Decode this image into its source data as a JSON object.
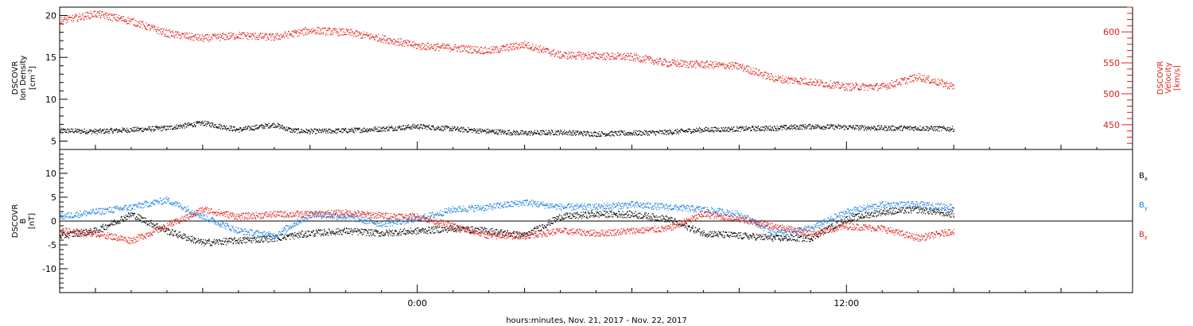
{
  "chart_data": [
    {
      "panel": "plasma",
      "type": "scatter",
      "time_axis": {
        "start": "2017-11-21 -10:00",
        "end": "2017-11-22 20:00",
        "tick_labels": [
          "0:00",
          "12:00"
        ],
        "tick_hours": [
          0,
          12
        ],
        "label": "hours:minutes, Nov. 21, 2017 - Nov. 22, 2017"
      },
      "left_axis": {
        "label_lines": [
          "DSCOVR",
          "Ion Density"
        ],
        "unit_base": "[cm",
        "unit_sup": "-3",
        "unit_close": "]",
        "ylim": [
          4,
          21
        ],
        "ticks": [
          5,
          10,
          15,
          20
        ],
        "color": "#000000"
      },
      "right_axis": {
        "label_lines": [
          "DSCOVR",
          "Velocity",
          "[km/s]"
        ],
        "ylim": [
          410,
          640
        ],
        "ticks": [
          450,
          500,
          550,
          600
        ],
        "color": "#e0201a"
      },
      "series": [
        {
          "axis": "left",
          "color": "#000000",
          "x_hours": [
            -10,
            -9,
            -8,
            -7,
            -6,
            -5,
            -4,
            -3.5,
            -3,
            -2,
            -1,
            0,
            1,
            2,
            3,
            4,
            5,
            6,
            7,
            8,
            9,
            10,
            11,
            12,
            13,
            14,
            15
          ],
          "values": [
            6.3,
            6.2,
            6.4,
            6.6,
            7.2,
            6.4,
            7.0,
            6.3,
            6.2,
            6.3,
            6.5,
            6.8,
            6.5,
            6.2,
            6.0,
            6.1,
            5.9,
            6.0,
            6.1,
            6.4,
            6.5,
            6.6,
            6.8,
            6.7,
            6.6,
            6.6,
            6.5
          ]
        },
        {
          "axis": "right",
          "color": "#e0201a",
          "x_hours": [
            -10,
            -9,
            -8,
            -7,
            -6,
            -5,
            -4,
            -3,
            -2,
            -1,
            0,
            1,
            2,
            3,
            4,
            5,
            6,
            7,
            8,
            9,
            10,
            11,
            12,
            13,
            14,
            15
          ],
          "values": [
            618,
            630,
            618,
            598,
            590,
            595,
            592,
            603,
            600,
            590,
            578,
            575,
            570,
            580,
            563,
            562,
            560,
            550,
            548,
            545,
            525,
            520,
            512,
            512,
            528,
            512
          ]
        }
      ]
    },
    {
      "panel": "magnetic",
      "type": "scatter",
      "left_axis": {
        "label_lines": [
          "DSCOVR",
          "B",
          "[nT]"
        ],
        "ylim": [
          -15,
          15
        ],
        "ticks": [
          -10,
          -5,
          0,
          5,
          10
        ],
        "color": "#000000"
      },
      "zero_line": true,
      "legend_placement": "right",
      "series": [
        {
          "name_main": "B",
          "name_sub": "x",
          "color": "#000000",
          "x_hours": [
            -10,
            -9,
            -8,
            -7,
            -6,
            -5,
            -4,
            -3,
            -2,
            -1,
            0,
            1,
            2,
            3,
            4,
            5,
            6,
            7,
            8,
            9,
            10,
            11,
            12,
            13,
            14,
            15
          ],
          "values": [
            -3,
            -2,
            1.5,
            -2,
            -4.5,
            -4,
            -3.5,
            -2.5,
            -2,
            -2.5,
            -2,
            -1.5,
            -2,
            -3,
            1,
            1.5,
            1.5,
            0.5,
            -2.5,
            -3,
            -3.5,
            -3.5,
            0.5,
            2,
            2.5,
            1.5
          ]
        },
        {
          "name_main": "B",
          "name_sub": "y",
          "color": "#1a7fe0",
          "x_hours": [
            -10,
            -9,
            -8,
            -7,
            -6,
            -5,
            -4,
            -3,
            -2,
            -1,
            0,
            1,
            2,
            3,
            4,
            5,
            6,
            7,
            8,
            9,
            10,
            11,
            12,
            13,
            14,
            15
          ],
          "values": [
            1,
            2,
            3,
            4.5,
            1,
            -2,
            -3,
            1.5,
            1,
            -0.5,
            0.5,
            2.5,
            3,
            4,
            3,
            3,
            3.5,
            3,
            2.5,
            1.5,
            -2.5,
            -1.5,
            2,
            3.5,
            3.5,
            3
          ]
        },
        {
          "name_main": "B",
          "name_sub": "z",
          "color": "#e0201a",
          "x_hours": [
            -10,
            -9,
            -8,
            -7,
            -6,
            -5,
            -4,
            -3,
            -2,
            -1,
            0,
            1,
            2,
            3,
            4,
            5,
            6,
            7,
            8,
            9,
            10,
            11,
            12,
            13,
            14,
            15
          ],
          "values": [
            -2,
            -2.5,
            -4,
            -1,
            2.5,
            1,
            1.5,
            1.5,
            1.8,
            1.2,
            1,
            -1,
            -3,
            -3,
            -2,
            -2.5,
            -2,
            -1.5,
            1.5,
            0.5,
            -1,
            -2.5,
            -1,
            -1.5,
            -3.5,
            -2
          ]
        }
      ]
    }
  ]
}
